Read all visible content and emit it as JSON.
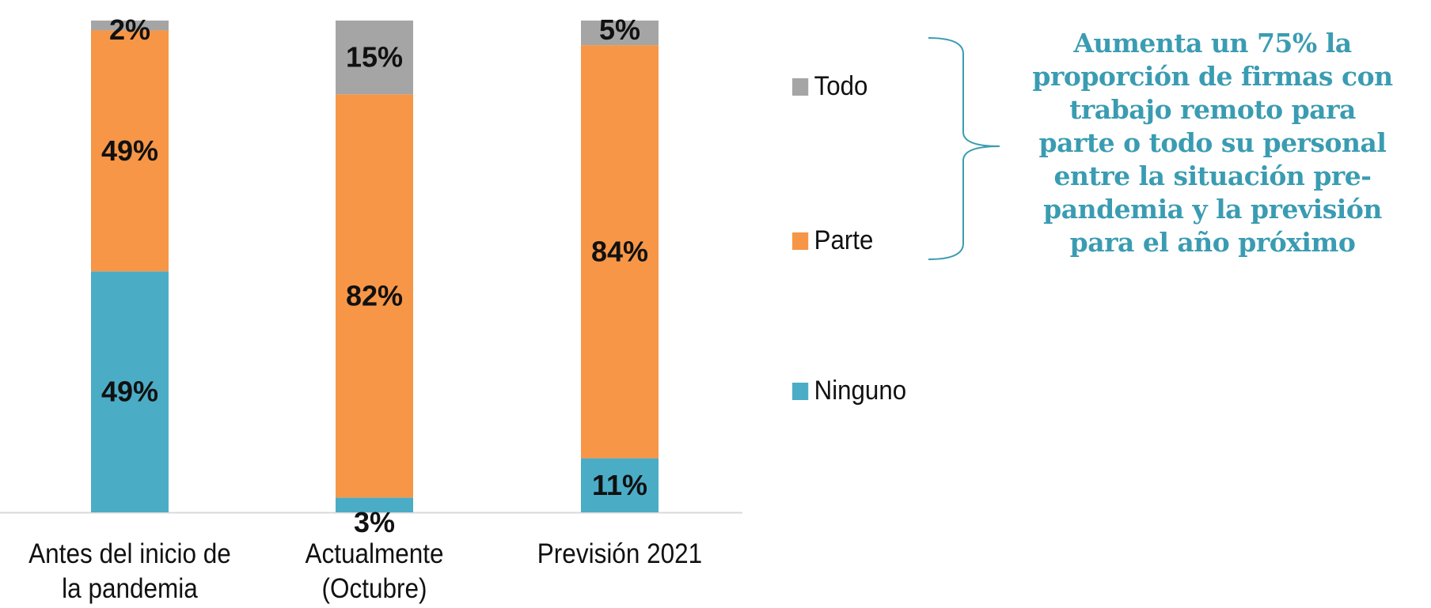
{
  "chart_data": {
    "type": "bar",
    "stacked": true,
    "categories": [
      "Antes del inicio de la pandemia",
      "Actualmente (Octubre)",
      "Previsión 2021"
    ],
    "category_label_lines": [
      [
        "Antes del inicio de",
        "la pandemia"
      ],
      [
        "Actualmente",
        "(Octubre)"
      ],
      [
        "Previsión 2021"
      ]
    ],
    "series": [
      {
        "name": "Ninguno",
        "values": [
          49,
          3,
          11
        ],
        "labels": [
          "49%",
          "3%",
          "11%"
        ],
        "color": "#4bacc6"
      },
      {
        "name": "Parte",
        "values": [
          49,
          82,
          84
        ],
        "labels": [
          "49%",
          "82%",
          "84%"
        ],
        "color": "#f79646"
      },
      {
        "name": "Todo",
        "values": [
          2,
          15,
          5
        ],
        "labels": [
          "2%",
          "15%",
          "5%"
        ],
        "color": "#a5a5a5"
      }
    ],
    "ylim": [
      0,
      100
    ],
    "legend_order": [
      "Todo",
      "Parte",
      "Ninguno"
    ],
    "legend_position": "right",
    "grid": false
  },
  "annotation": {
    "lines": [
      "Aumenta un 75% la",
      "proporción de firmas con",
      "trabajo remoto para",
      "parte o todo su personal",
      "entre la situación pre-",
      "pandemia y la previsión",
      "para el año próximo"
    ],
    "color": "#3a9cb2"
  }
}
